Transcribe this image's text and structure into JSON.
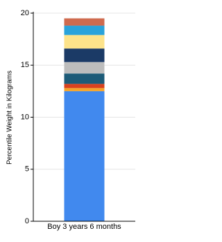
{
  "chart_data": {
    "type": "stacked_bar",
    "y_label": "Percentile Weight in Kilograms",
    "categories": [
      "Boy 3 years 6 months"
    ],
    "series": [
      {
        "color": "#4189ee",
        "values": [
          12.5
        ]
      },
      {
        "color": "#f4a42a",
        "values": [
          0.3
        ]
      },
      {
        "color": "#d9411e",
        "values": [
          0.4
        ]
      },
      {
        "color": "#1d5b78",
        "values": [
          1.0
        ]
      },
      {
        "color": "#bdbdbd",
        "values": [
          1.1
        ]
      },
      {
        "color": "#1b3a66",
        "values": [
          1.3
        ]
      },
      {
        "color": "#fde38a",
        "values": [
          1.3
        ]
      },
      {
        "color": "#29a3db",
        "values": [
          0.9
        ]
      },
      {
        "color": "#cf6b4f",
        "values": [
          0.7
        ]
      }
    ],
    "ylim": [
      0,
      20
    ],
    "yticks": [
      0,
      5,
      10,
      15,
      20
    ],
    "grid": true
  }
}
